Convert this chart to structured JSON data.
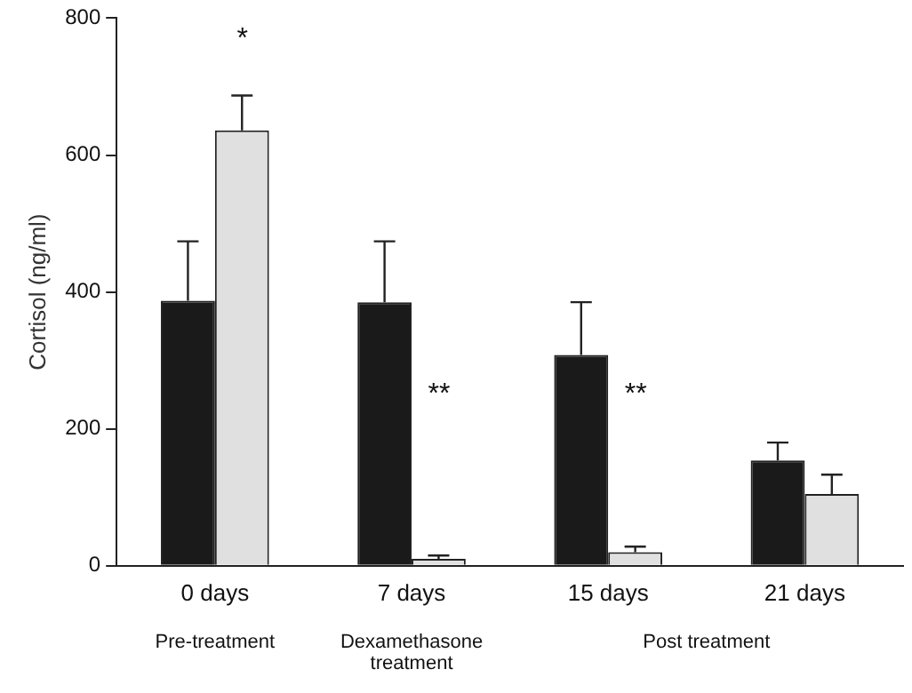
{
  "chart_data": {
    "type": "bar",
    "ylabel": "Cortisol (ng/ml)",
    "categories": [
      "0 days",
      "7 days",
      "15 days",
      "21 days"
    ],
    "series": [
      {
        "color": "#1a1a1a",
        "values": [
          387,
          385,
          308,
          154
        ],
        "errors": [
          [
            387,
            474
          ],
          [
            385,
            474
          ],
          [
            308,
            385
          ],
          [
            154,
            180
          ]
        ]
      },
      {
        "color": "#e0e0e0",
        "values": [
          636,
          10,
          20,
          105
        ],
        "errors": [
          [
            636,
            687
          ],
          [
            10,
            15
          ],
          [
            20,
            28
          ],
          [
            105,
            133
          ]
        ]
      }
    ],
    "ylim": [
      0,
      800
    ],
    "yticks": [
      0,
      200,
      400,
      600,
      800
    ],
    "grid": false,
    "legend": false,
    "annotations": [
      "*",
      {
        "text": "**",
        "x": "7 days",
        "y": 250
      },
      {
        "text": "**",
        "x": "15 days",
        "y": 250
      },
      "Pre-treatment",
      "Dexamethasone treatment",
      "Post treatment"
    ]
  }
}
